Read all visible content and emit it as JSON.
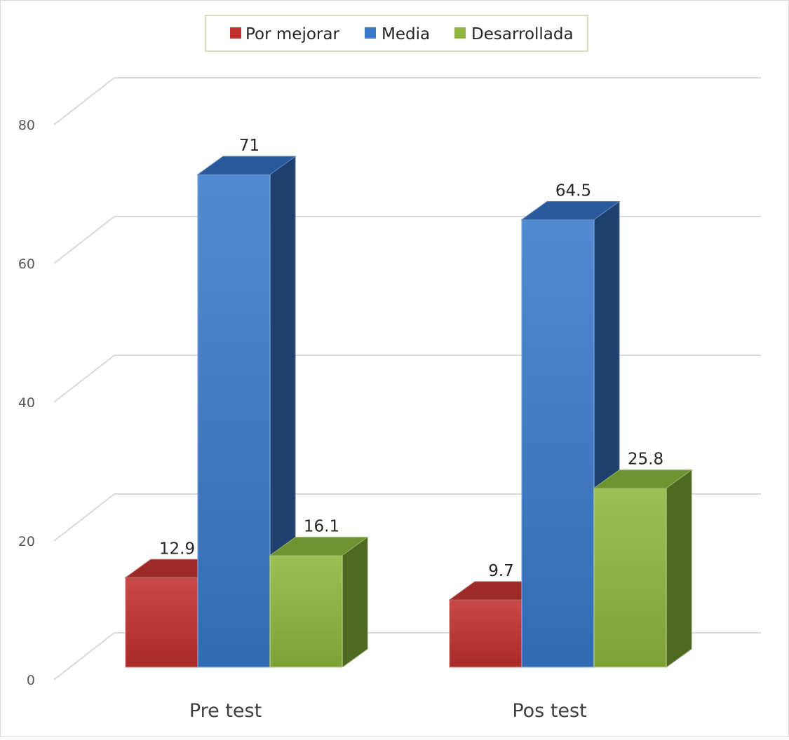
{
  "chart_data": {
    "type": "bar",
    "categories": [
      "Pre test",
      "Pos test"
    ],
    "series": [
      {
        "name": "Por mejorar",
        "values": [
          12.9,
          9.7
        ],
        "color": "#c0302e"
      },
      {
        "name": "Media",
        "values": [
          71,
          64.5
        ],
        "color": "#3a7acb"
      },
      {
        "name": "Desarrollada",
        "values": [
          16.1,
          25.8
        ],
        "color": "#8fb73e"
      }
    ],
    "data_labels": [
      [
        "12.9",
        "9.7"
      ],
      [
        "71",
        "64.5"
      ],
      [
        "16.1",
        "25.8"
      ]
    ],
    "yticks": [
      0,
      20,
      40,
      60,
      80
    ],
    "ylim": [
      0,
      80
    ],
    "grid": true,
    "three_d": true,
    "legend_position": "top"
  }
}
